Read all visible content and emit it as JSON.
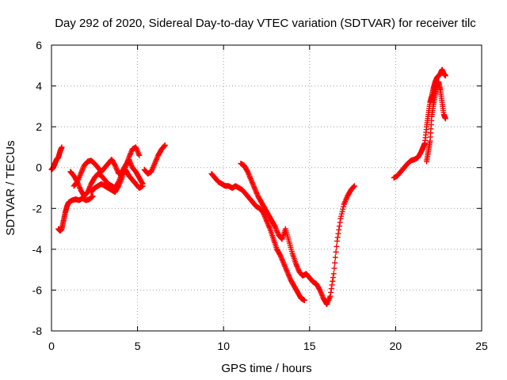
{
  "chart_data": {
    "type": "scatter",
    "title": "Day 292 of 2020, Sidereal Day-to-day VTEC variation (SDTVAR) for receiver tilc",
    "xlabel": "GPS time / hours",
    "ylabel": "SDTVAR / TECUs",
    "xlim": [
      0,
      25
    ],
    "ylim": [
      -8,
      6
    ],
    "xticks": [
      0,
      5,
      10,
      15,
      20,
      25
    ],
    "yticks": [
      -8,
      -6,
      -4,
      -2,
      0,
      2,
      4,
      6
    ],
    "xtick_labels": [
      "0",
      "5",
      "10",
      "15",
      "20",
      "25"
    ],
    "ytick_labels": [
      "-8",
      "-6",
      "-4",
      "-2",
      "0",
      "2",
      "4",
      "6"
    ],
    "grid": true,
    "marker": "+",
    "color": "#ff0000",
    "series": [
      {
        "name": "s1",
        "x": [
          0.0,
          0.1,
          0.2,
          0.3,
          0.4,
          0.5,
          0.6
        ],
        "y": [
          -0.1,
          0.0,
          0.2,
          0.4,
          0.5,
          0.8,
          1.0
        ]
      },
      {
        "name": "s2",
        "x": [
          0.4,
          0.5,
          0.6,
          0.7,
          0.8,
          0.9,
          1.0,
          1.2,
          1.4,
          1.6,
          1.8,
          2.0,
          2.2,
          2.4
        ],
        "y": [
          -3.0,
          -3.1,
          -3.0,
          -2.6,
          -2.2,
          -1.9,
          -1.7,
          -1.6,
          -1.55,
          -1.6,
          -1.5,
          -1.6,
          -1.55,
          -1.4
        ]
      },
      {
        "name": "s3",
        "x": [
          1.1,
          1.3,
          1.5,
          1.7,
          1.9,
          2.1,
          2.3,
          2.5,
          2.7,
          2.9,
          3.1,
          3.3,
          3.5,
          3.7,
          3.9,
          4.1,
          4.3,
          4.5,
          4.7,
          4.9,
          5.1,
          5.3
        ],
        "y": [
          -0.2,
          -0.4,
          -0.7,
          -1.1,
          -1.4,
          -1.2,
          -0.8,
          -0.5,
          -0.3,
          -0.4,
          -0.6,
          -0.8,
          -0.9,
          -1.0,
          -0.7,
          -0.3,
          -0.1,
          -0.4,
          -0.6,
          -0.8,
          -1.0,
          -0.9
        ]
      },
      {
        "name": "s4",
        "x": [
          1.3,
          1.5,
          1.7,
          1.9,
          2.1,
          2.3,
          2.5,
          2.7,
          2.9,
          3.1,
          3.3,
          3.5,
          3.7,
          3.9,
          4.1,
          4.3,
          4.5,
          4.7,
          4.9,
          5.1,
          5.3
        ],
        "y": [
          -0.9,
          -0.7,
          -0.3,
          0.1,
          0.3,
          0.35,
          0.2,
          0.0,
          -0.2,
          0.0,
          0.2,
          0.4,
          0.1,
          -0.3,
          -0.2,
          0.1,
          0.4,
          0.0,
          -0.2,
          -0.5,
          -0.8
        ]
      },
      {
        "name": "s5",
        "x": [
          2.3,
          2.5,
          2.7,
          2.9,
          3.1,
          3.3,
          3.5,
          3.7,
          3.9,
          4.1,
          4.3,
          4.5,
          4.7,
          4.9,
          5.1
        ],
        "y": [
          -1.2,
          -1.0,
          -0.9,
          -0.8,
          -0.9,
          -1.0,
          -1.1,
          -1.2,
          -0.9,
          -0.5,
          0.0,
          0.5,
          0.9,
          1.0,
          0.6
        ]
      },
      {
        "name": "s6",
        "x": [
          5.4,
          5.6,
          5.8,
          6.0,
          6.2,
          6.4,
          6.6
        ],
        "y": [
          -0.1,
          -0.3,
          -0.2,
          0.2,
          0.6,
          0.9,
          1.1
        ]
      },
      {
        "name": "s7",
        "x": [
          9.3,
          9.5,
          9.7,
          9.9,
          10.1,
          10.3,
          10.5,
          10.7,
          10.9,
          11.1,
          11.3,
          11.5,
          11.7,
          11.9,
          12.1,
          12.3,
          12.5,
          12.7,
          12.9,
          13.1,
          13.3,
          13.5,
          13.7,
          13.9,
          14.1,
          14.3,
          14.5,
          14.7
        ],
        "y": [
          -0.3,
          -0.5,
          -0.7,
          -0.8,
          -0.9,
          -0.9,
          -1.0,
          -0.9,
          -1.0,
          -1.1,
          -1.3,
          -1.5,
          -1.7,
          -1.9,
          -2.0,
          -2.2,
          -2.6,
          -3.0,
          -3.5,
          -4.0,
          -4.3,
          -4.7,
          -5.1,
          -5.5,
          -5.8,
          -6.1,
          -6.4,
          -6.5
        ]
      },
      {
        "name": "s8",
        "x": [
          11.0,
          11.2,
          11.4,
          11.6,
          11.8,
          12.0,
          12.2,
          12.4,
          12.6,
          12.8,
          13.0,
          13.2,
          13.4,
          13.6,
          13.8,
          14.0,
          14.2,
          14.4,
          14.6,
          14.8,
          15.0,
          15.2,
          15.4,
          15.6,
          15.8,
          16.0,
          16.2,
          16.4,
          16.6,
          16.8,
          17.0,
          17.2,
          17.4,
          17.6
        ],
        "y": [
          0.2,
          0.1,
          -0.2,
          -0.6,
          -1.0,
          -1.4,
          -1.7,
          -2.0,
          -2.3,
          -2.6,
          -2.9,
          -3.3,
          -3.5,
          -3.0,
          -3.6,
          -4.2,
          -4.7,
          -5.1,
          -5.3,
          -5.2,
          -5.4,
          -5.6,
          -5.7,
          -6.0,
          -6.4,
          -6.7,
          -6.3,
          -5.2,
          -3.6,
          -2.5,
          -1.8,
          -1.4,
          -1.1,
          -0.9
        ]
      },
      {
        "name": "s9",
        "x": [
          19.9,
          20.1,
          20.3,
          20.5,
          20.7,
          20.9,
          21.1,
          21.3,
          21.5,
          21.6,
          21.7,
          21.8,
          21.9,
          22.0,
          22.1,
          22.2,
          22.3,
          22.4,
          22.5,
          22.6,
          22.7,
          22.8,
          22.9
        ],
        "y": [
          -0.5,
          -0.4,
          -0.2,
          0.0,
          0.2,
          0.35,
          0.4,
          0.5,
          0.8,
          1.0,
          1.2,
          2.0,
          2.6,
          3.2,
          3.5,
          3.9,
          4.2,
          4.4,
          4.5,
          4.6,
          4.8,
          4.6,
          4.5
        ]
      },
      {
        "name": "s10",
        "x": [
          21.8,
          21.9,
          22.0,
          22.1,
          22.2,
          22.3,
          22.4,
          22.5,
          22.6,
          22.7,
          22.8,
          22.9
        ],
        "y": [
          0.3,
          0.8,
          1.3,
          2.5,
          3.1,
          3.6,
          4.0,
          4.2,
          3.8,
          3.2,
          2.6,
          2.4
        ]
      }
    ]
  }
}
